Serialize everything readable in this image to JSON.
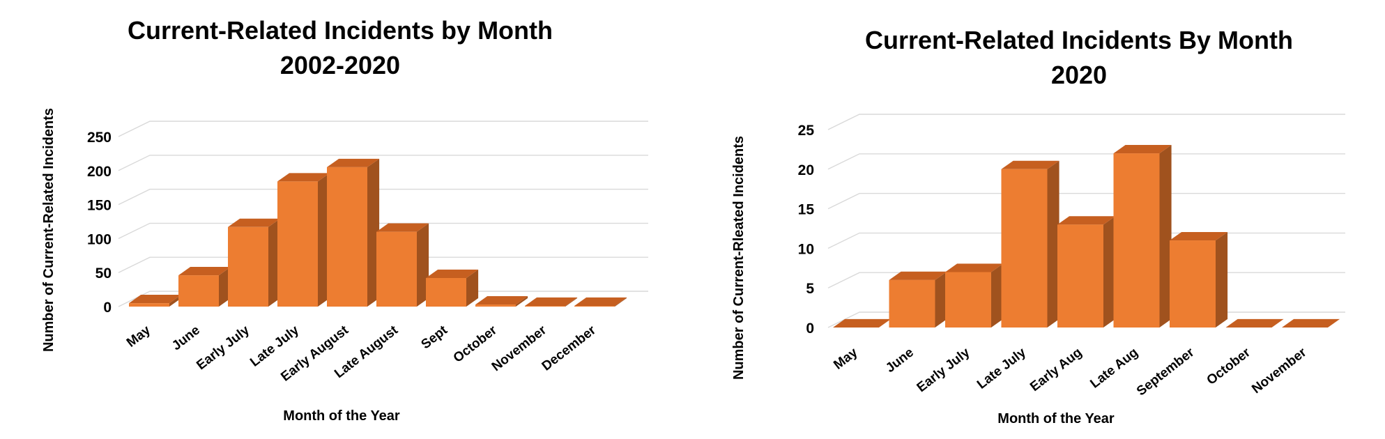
{
  "colors": {
    "front": "#ED7D31",
    "side": "#A0521E",
    "top": "#C65F20",
    "grid": "#D9D9D9"
  },
  "chart_data": [
    {
      "type": "bar",
      "title": "Current-Related Incidents by Month",
      "subtitle": "2002-2020",
      "xlabel": "Month of the Year",
      "ylabel": "Number of Current-Related Incidents",
      "categories": [
        "May",
        "June",
        "Early July",
        "Late July",
        "Early August",
        "Late August",
        "Sept",
        "October",
        "November",
        "December"
      ],
      "values": [
        5,
        46,
        117,
        184,
        205,
        110,
        42,
        3,
        1,
        1
      ],
      "yticks": [
        0,
        50,
        100,
        150,
        200,
        250
      ],
      "ylim": [
        0,
        250
      ],
      "grid": true,
      "style": "3d-column"
    },
    {
      "type": "bar",
      "title": "Current-Related Incidents By Month",
      "subtitle": "2020",
      "xlabel": "Month of the Year",
      "ylabel": "Number of Current-Rleated Incidents",
      "categories": [
        "May",
        "June",
        "Early July",
        "Late July",
        "Early Aug",
        "Late Aug",
        "September",
        "October",
        "November"
      ],
      "values": [
        0,
        6,
        7,
        20,
        13,
        22,
        11,
        0,
        0
      ],
      "yticks": [
        0,
        5,
        10,
        15,
        20,
        25
      ],
      "ylim": [
        0,
        25
      ],
      "grid": true,
      "style": "3d-column"
    }
  ]
}
